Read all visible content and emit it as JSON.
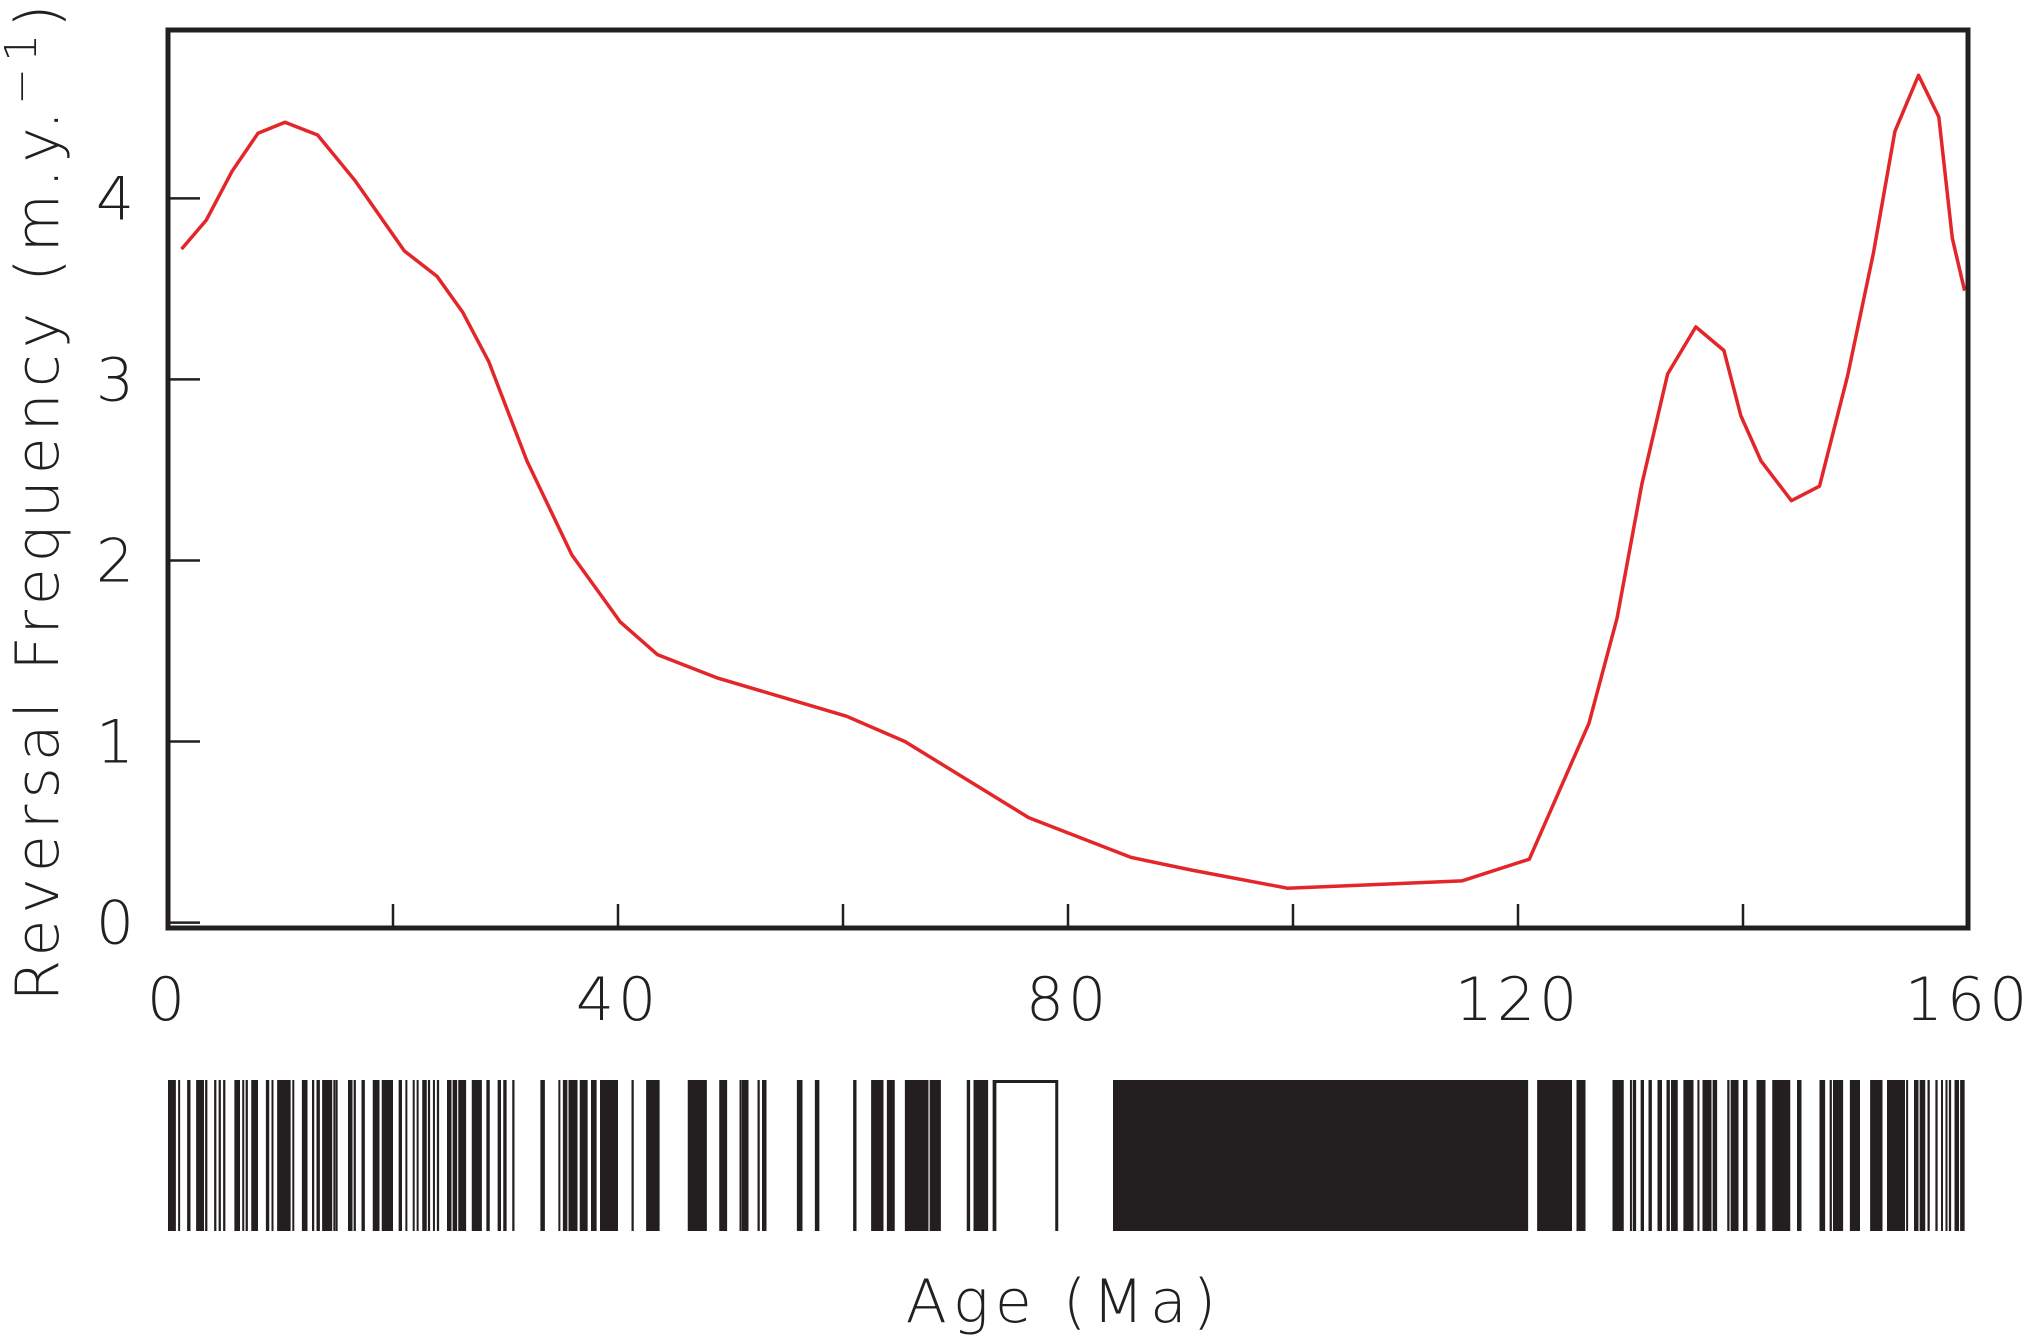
{
  "chart_data": {
    "type": "line",
    "title": "",
    "xlabel": "Age (Ma)",
    "ylabel_main": "Reversal Frequency (m.y.",
    "ylabel_sup": "−1",
    "ylabel_close": ")",
    "xlim": [
      0,
      160
    ],
    "ylim": [
      -0.03,
      4.93
    ],
    "xticks": [
      0,
      40,
      80,
      120,
      160
    ],
    "xticks_minor": [
      20,
      60,
      100,
      140
    ],
    "yticks": [
      0,
      1,
      2,
      3,
      4
    ],
    "grid": false,
    "line_color": "#e3262a",
    "axis_color": "#231f20",
    "series": [
      {
        "x": [
          1.2,
          3.4,
          5.7,
          8.0,
          10.4,
          13.3,
          16.6,
          21.0,
          23.9,
          26.2,
          28.5,
          31.9,
          35.9,
          40.2,
          43.5,
          48.9,
          60.3,
          65.5,
          76.5,
          85.6,
          91.0,
          99.5,
          115.0,
          121.0,
          126.3,
          128.8,
          131.0,
          133.3,
          135.8,
          138.3,
          139.8,
          141.6,
          144.3,
          146.8,
          149.3,
          151.6,
          153.5,
          155.6,
          157.4,
          158.6,
          159.7
        ],
        "y": [
          3.72,
          3.88,
          4.15,
          4.36,
          4.42,
          4.35,
          4.1,
          3.71,
          3.57,
          3.37,
          3.1,
          2.55,
          2.03,
          1.66,
          1.48,
          1.35,
          1.14,
          1.0,
          0.58,
          0.36,
          0.29,
          0.19,
          0.23,
          0.35,
          1.1,
          1.68,
          2.42,
          3.03,
          3.29,
          3.16,
          2.8,
          2.55,
          2.33,
          2.41,
          3.02,
          3.7,
          4.37,
          4.68,
          4.45,
          3.78,
          3.49
        ]
      }
    ],
    "polarity_timescale": {
      "normal_intervals_ma": [
        [
          0,
          0.7
        ],
        [
          0.9,
          1.0
        ],
        [
          1.7,
          2.0
        ],
        [
          2.5,
          3.2
        ],
        [
          3.3,
          3.5
        ],
        [
          4.1,
          4.3
        ],
        [
          4.5,
          4.7
        ],
        [
          4.9,
          5.1
        ],
        [
          5.9,
          6.4
        ],
        [
          6.6,
          6.7
        ],
        [
          6.9,
          7.1
        ],
        [
          7.4,
          8.0
        ],
        [
          8.7,
          9.0
        ],
        [
          9.2,
          9.3
        ],
        [
          9.7,
          10.9
        ],
        [
          11.05,
          11.15
        ],
        [
          11.9,
          12.4
        ],
        [
          12.8,
          13.0
        ],
        [
          13.2,
          13.5
        ],
        [
          13.7,
          14.6
        ],
        [
          14.7,
          14.8
        ],
        [
          14.9,
          15.0
        ],
        [
          16.0,
          16.4
        ],
        [
          16.5,
          16.7
        ],
        [
          17.2,
          17.5
        ],
        [
          18.2,
          18.8
        ],
        [
          19.0,
          20.0
        ],
        [
          20.5,
          20.8
        ],
        [
          21.1,
          21.2
        ],
        [
          21.75,
          21.85
        ],
        [
          22.1,
          22.2
        ],
        [
          22.6,
          23.0
        ],
        [
          23.1,
          23.3
        ],
        [
          23.55,
          23.65
        ],
        [
          23.9,
          24.1
        ],
        [
          24.8,
          25.2
        ],
        [
          25.3,
          25.7
        ],
        [
          25.8,
          26.5
        ],
        [
          27.0,
          27.9
        ],
        [
          28.3,
          28.6
        ],
        [
          29.3,
          29.6
        ],
        [
          29.8,
          30.1
        ],
        [
          30.6,
          30.8
        ],
        [
          33.1,
          33.5
        ],
        [
          34.7,
          34.8
        ],
        [
          35.1,
          35.5
        ],
        [
          35.6,
          36.4
        ],
        [
          36.6,
          37.3
        ],
        [
          37.6,
          38.1
        ],
        [
          38.4,
          40.0
        ],
        [
          41.2,
          41.4
        ],
        [
          42.5,
          43.7
        ],
        [
          46.2,
          47.9
        ],
        [
          49.0,
          49.7
        ],
        [
          50.8,
          50.9
        ],
        [
          51.0,
          51.6
        ],
        [
          52.4,
          52.6
        ],
        [
          52.8,
          53.2
        ],
        [
          55.9,
          56.4
        ],
        [
          57.5,
          57.9
        ],
        [
          60.9,
          61.2
        ],
        [
          62.5,
          63.6
        ],
        [
          63.9,
          64.6
        ],
        [
          65.5,
          67.6
        ],
        [
          67.7,
          68.7
        ],
        [
          71.0,
          71.3
        ],
        [
          71.6,
          72.9
        ],
        [
          73.3,
          73.4
        ],
        [
          84.0,
          120.9
        ],
        [
          121.7,
          124.8
        ],
        [
          125.2,
          126.0
        ],
        [
          128.4,
          129.4
        ],
        [
          129.95,
          130.05
        ],
        [
          130.2,
          130.5
        ],
        [
          130.9,
          131.2
        ],
        [
          131.6,
          131.9
        ],
        [
          132.4,
          132.8
        ],
        [
          133.2,
          133.5
        ],
        [
          133.6,
          134.2
        ],
        [
          134.7,
          135.6
        ],
        [
          135.95,
          136.05
        ],
        [
          136.4,
          137.2
        ],
        [
          137.3,
          137.7
        ],
        [
          138.6,
          138.8
        ],
        [
          138.9,
          139.6
        ],
        [
          140.0,
          140.4
        ],
        [
          141.2,
          142.0
        ],
        [
          142.6,
          144.2
        ],
        [
          144.8,
          145.2
        ],
        [
          146.8,
          147.3
        ],
        [
          147.7,
          147.9
        ],
        [
          148.0,
          148.9
        ],
        [
          149.5,
          150.4
        ],
        [
          151.3,
          152.4
        ],
        [
          152.8,
          154.4
        ],
        [
          154.5,
          154.6
        ],
        [
          155.2,
          155.6
        ],
        [
          155.7,
          156.2
        ],
        [
          156.4,
          156.6
        ],
        [
          157.1,
          157.3
        ],
        [
          157.6,
          157.7
        ],
        [
          158.0,
          158.1
        ],
        [
          158.3,
          158.5
        ],
        [
          158.8,
          159.2
        ],
        [
          159.3,
          159.7
        ]
      ],
      "outlined_interval_ma": [
        73.5,
        79.0
      ]
    }
  }
}
